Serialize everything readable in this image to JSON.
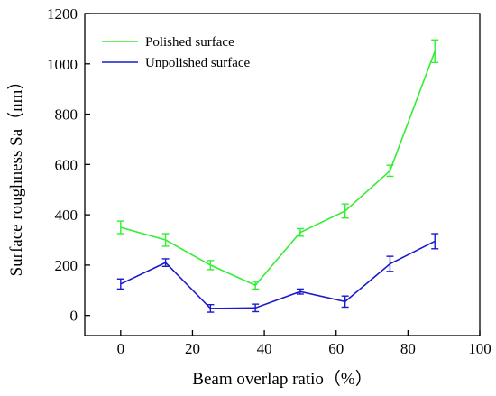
{
  "chart_data": {
    "type": "line",
    "title": "",
    "xlabel": "Beam overlap ratio（%）",
    "ylabel": "Surface roughness Sa（nm）",
    "xlim": [
      -10,
      100
    ],
    "ylim": [
      -80,
      1200
    ],
    "xticks": [
      0,
      20,
      40,
      60,
      80,
      100
    ],
    "yticks": [
      0,
      200,
      400,
      600,
      800,
      1000,
      1200
    ],
    "grid": false,
    "legend_position": "top-left",
    "x": [
      0,
      12.5,
      25,
      37.5,
      50,
      62.5,
      75,
      87.5
    ],
    "series": [
      {
        "name": "Polished surface",
        "color": "#33ee33",
        "values": [
          350,
          300,
          200,
          120,
          330,
          415,
          575,
          1050
        ],
        "errors": [
          25,
          25,
          18,
          15,
          15,
          28,
          22,
          45
        ]
      },
      {
        "name": "Unpolished surface",
        "color": "#1a1acc",
        "values": [
          125,
          210,
          28,
          30,
          95,
          55,
          205,
          295
        ],
        "errors": [
          20,
          15,
          15,
          15,
          10,
          22,
          30,
          30
        ]
      }
    ]
  }
}
